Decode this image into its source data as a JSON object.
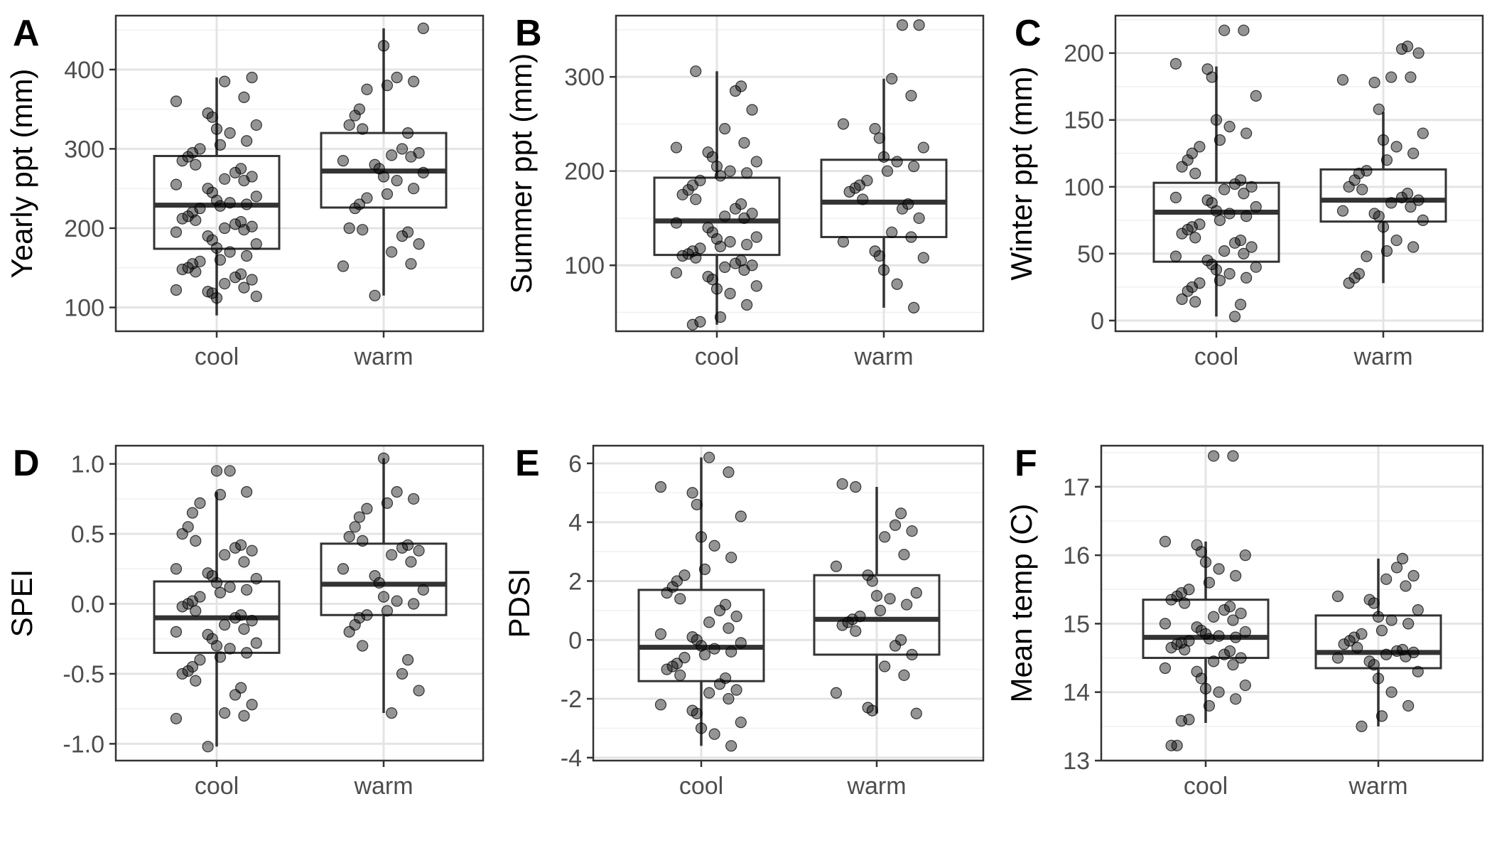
{
  "chart_data": [
    {
      "type": "boxplot",
      "panel_label": "A",
      "ylabel": "Yearly ppt (mm)",
      "categories": [
        "cool",
        "warm"
      ],
      "yticks": [
        100,
        200,
        300,
        400
      ],
      "ylim": [
        70,
        468
      ],
      "grid": true,
      "legend": "none",
      "boxes": [
        {
          "category": "cool",
          "whisker_low": 90,
          "q1": 174,
          "median": 229,
          "q3": 291,
          "whisker_high": 390
        },
        {
          "category": "warm",
          "whisker_low": 115,
          "q1": 226,
          "median": 272,
          "q3": 320,
          "whisker_high": 452
        }
      ],
      "points": [
        [
          112,
          114,
          118,
          120,
          122,
          125,
          130,
          135,
          138,
          142,
          145,
          148,
          150,
          155,
          158,
          160,
          165,
          170,
          175,
          180,
          185,
          190,
          195,
          198,
          200,
          202,
          205,
          208,
          210,
          212,
          215,
          220,
          225,
          228,
          230,
          232,
          235,
          240,
          245,
          250,
          255,
          260,
          262,
          265,
          270,
          275,
          280,
          285,
          290,
          295,
          300,
          305,
          310,
          320,
          325,
          330,
          340,
          345,
          360,
          365,
          385,
          390
        ],
        [
          115,
          152,
          155,
          170,
          180,
          190,
          195,
          198,
          200,
          225,
          230,
          238,
          243,
          250,
          260,
          265,
          270,
          275,
          280,
          285,
          290,
          292,
          295,
          300,
          320,
          325,
          330,
          342,
          350,
          375,
          380,
          385,
          390,
          430,
          452
        ]
      ]
    },
    {
      "type": "boxplot",
      "panel_label": "B",
      "ylabel": "Summer ppt (mm)",
      "categories": [
        "cool",
        "warm"
      ],
      "yticks": [
        100,
        200,
        300
      ],
      "ylim": [
        30,
        365
      ],
      "grid": true,
      "legend": "none",
      "boxes": [
        {
          "category": "cool",
          "whisker_low": 37,
          "q1": 111,
          "median": 147,
          "q3": 193,
          "whisker_high": 306
        },
        {
          "category": "warm",
          "whisker_low": 55,
          "q1": 130,
          "median": 167,
          "q3": 212,
          "whisker_high": 298
        }
      ],
      "points": [
        [
          37,
          40,
          45,
          58,
          70,
          75,
          78,
          85,
          88,
          92,
          95,
          98,
          100,
          102,
          105,
          108,
          110,
          112,
          115,
          118,
          120,
          122,
          125,
          128,
          130,
          135,
          140,
          145,
          150,
          152,
          155,
          160,
          165,
          170,
          175,
          180,
          185,
          190,
          195,
          198,
          200,
          205,
          210,
          215,
          220,
          225,
          230,
          245,
          265,
          285,
          290,
          306
        ],
        [
          55,
          80,
          95,
          108,
          110,
          115,
          125,
          130,
          135,
          150,
          160,
          165,
          170,
          178,
          182,
          185,
          190,
          200,
          205,
          210,
          215,
          225,
          235,
          245,
          250,
          280,
          298,
          355,
          355
        ]
      ]
    },
    {
      "type": "boxplot",
      "panel_label": "C",
      "ylabel": "Winter ppt (mm)",
      "categories": [
        "cool",
        "warm"
      ],
      "yticks": [
        0,
        50,
        100,
        150,
        200
      ],
      "ylim": [
        -8,
        228
      ],
      "grid": true,
      "legend": "none",
      "boxes": [
        {
          "category": "cool",
          "whisker_low": 3,
          "q1": 44,
          "median": 81,
          "q3": 103,
          "whisker_high": 190
        },
        {
          "category": "warm",
          "whisker_low": 28,
          "q1": 74,
          "median": 90,
          "q3": 113,
          "whisker_high": 156
        }
      ],
      "points": [
        [
          3,
          12,
          14,
          16,
          22,
          25,
          28,
          30,
          32,
          35,
          38,
          40,
          42,
          45,
          48,
          50,
          52,
          55,
          58,
          60,
          62,
          65,
          68,
          70,
          72,
          75,
          78,
          80,
          82,
          85,
          88,
          90,
          92,
          95,
          98,
          100,
          102,
          105,
          110,
          115,
          120,
          125,
          130,
          135,
          140,
          145,
          150,
          168,
          182,
          188,
          192,
          217,
          217
        ],
        [
          28,
          32,
          35,
          48,
          52,
          55,
          60,
          70,
          75,
          78,
          80,
          82,
          85,
          88,
          90,
          92,
          95,
          98,
          100,
          105,
          110,
          112,
          120,
          125,
          130,
          135,
          140,
          158,
          178,
          180,
          182,
          182,
          200,
          203,
          205
        ]
      ]
    },
    {
      "type": "boxplot",
      "panel_label": "D",
      "ylabel": "SPEI",
      "categories": [
        "cool",
        "warm"
      ],
      "yticks": [
        -1.0,
        -0.5,
        0.0,
        0.5,
        1.0
      ],
      "ytick_labels": [
        "-1.0",
        "-0.5",
        "0.0",
        "0.5",
        "1.0"
      ],
      "ylim": [
        -1.12,
        1.13
      ],
      "grid": true,
      "legend": "none",
      "boxes": [
        {
          "category": "cool",
          "whisker_low": -1.02,
          "q1": -0.35,
          "median": -0.1,
          "q3": 0.16,
          "whisker_high": 0.8
        },
        {
          "category": "warm",
          "whisker_low": -0.78,
          "q1": -0.08,
          "median": 0.14,
          "q3": 0.43,
          "whisker_high": 1.04
        }
      ],
      "points": [
        [
          -1.02,
          -0.82,
          -0.8,
          -0.78,
          -0.72,
          -0.65,
          -0.6,
          -0.55,
          -0.5,
          -0.48,
          -0.45,
          -0.4,
          -0.38,
          -0.35,
          -0.32,
          -0.3,
          -0.28,
          -0.25,
          -0.22,
          -0.2,
          -0.18,
          -0.15,
          -0.12,
          -0.1,
          -0.08,
          -0.05,
          -0.02,
          0.0,
          0.02,
          0.05,
          0.08,
          0.1,
          0.12,
          0.15,
          0.18,
          0.2,
          0.22,
          0.25,
          0.3,
          0.35,
          0.38,
          0.4,
          0.42,
          0.45,
          0.5,
          0.55,
          0.65,
          0.72,
          0.78,
          0.8,
          0.95,
          0.95
        ],
        [
          -0.78,
          -0.62,
          -0.5,
          -0.4,
          -0.3,
          -0.2,
          -0.15,
          -0.1,
          -0.08,
          -0.05,
          0.0,
          0.02,
          0.05,
          0.1,
          0.15,
          0.2,
          0.25,
          0.3,
          0.35,
          0.38,
          0.4,
          0.42,
          0.45,
          0.48,
          0.55,
          0.62,
          0.68,
          0.72,
          0.75,
          0.8,
          1.04
        ]
      ]
    },
    {
      "type": "boxplot",
      "panel_label": "E",
      "ylabel": "PDSI",
      "categories": [
        "cool",
        "warm"
      ],
      "yticks": [
        -4,
        -2,
        0,
        2,
        4,
        6
      ],
      "ylim": [
        -4.1,
        6.6
      ],
      "grid": true,
      "legend": "none",
      "boxes": [
        {
          "category": "cool",
          "whisker_low": -3.6,
          "q1": -1.4,
          "median": -0.25,
          "q3": 1.7,
          "whisker_high": 6.2
        },
        {
          "category": "warm",
          "whisker_low": -2.5,
          "q1": -0.5,
          "median": 0.7,
          "q3": 2.2,
          "whisker_high": 5.2
        }
      ],
      "points": [
        [
          -3.6,
          -3.2,
          -3.0,
          -2.8,
          -2.5,
          -2.4,
          -2.2,
          -2.0,
          -1.8,
          -1.7,
          -1.5,
          -1.3,
          -1.2,
          -1.0,
          -0.9,
          -0.8,
          -0.6,
          -0.5,
          -0.4,
          -0.3,
          -0.2,
          -0.1,
          0.0,
          0.1,
          0.2,
          0.4,
          0.6,
          0.8,
          1.0,
          1.2,
          1.4,
          1.6,
          1.8,
          2.0,
          2.2,
          2.4,
          2.8,
          3.2,
          3.5,
          4.2,
          4.6,
          5.0,
          5.2,
          5.7,
          6.2
        ],
        [
          -2.5,
          -2.4,
          -2.3,
          -1.8,
          -1.2,
          -0.9,
          -0.5,
          -0.2,
          0.0,
          0.3,
          0.5,
          0.6,
          0.7,
          0.8,
          1.0,
          1.2,
          1.4,
          1.5,
          1.6,
          2.0,
          2.2,
          2.5,
          2.9,
          3.5,
          3.7,
          3.9,
          4.3,
          5.2,
          5.3
        ]
      ]
    },
    {
      "type": "boxplot",
      "panel_label": "F",
      "ylabel": "Mean temp (C)",
      "categories": [
        "cool",
        "warm"
      ],
      "yticks": [
        13,
        14,
        15,
        16,
        17
      ],
      "ylim": [
        13.0,
        17.6
      ],
      "grid": true,
      "legend": "none",
      "boxes": [
        {
          "category": "cool",
          "whisker_low": 13.55,
          "q1": 14.5,
          "median": 14.8,
          "q3": 15.35,
          "whisker_high": 16.2
        },
        {
          "category": "warm",
          "whisker_low": 13.5,
          "q1": 14.35,
          "median": 14.58,
          "q3": 15.12,
          "whisker_high": 15.95
        }
      ],
      "points": [
        [
          13.22,
          13.22,
          13.58,
          13.6,
          13.8,
          13.9,
          14.0,
          14.05,
          14.1,
          14.2,
          14.3,
          14.35,
          14.4,
          14.45,
          14.5,
          14.55,
          14.6,
          14.62,
          14.65,
          14.7,
          14.72,
          14.75,
          14.78,
          14.8,
          14.82,
          14.85,
          14.88,
          14.9,
          14.95,
          15.0,
          15.05,
          15.1,
          15.15,
          15.2,
          15.25,
          15.3,
          15.35,
          15.4,
          15.45,
          15.5,
          15.6,
          15.7,
          15.8,
          15.9,
          16.0,
          16.05,
          16.15,
          16.2,
          17.45,
          17.45
        ],
        [
          13.5,
          13.65,
          13.8,
          14.0,
          14.2,
          14.3,
          14.4,
          14.45,
          14.5,
          14.52,
          14.55,
          14.58,
          14.6,
          14.62,
          14.65,
          14.7,
          14.75,
          14.8,
          14.85,
          14.9,
          15.0,
          15.05,
          15.1,
          15.2,
          15.3,
          15.35,
          15.4,
          15.55,
          15.65,
          15.7,
          15.82,
          15.95
        ]
      ]
    }
  ]
}
